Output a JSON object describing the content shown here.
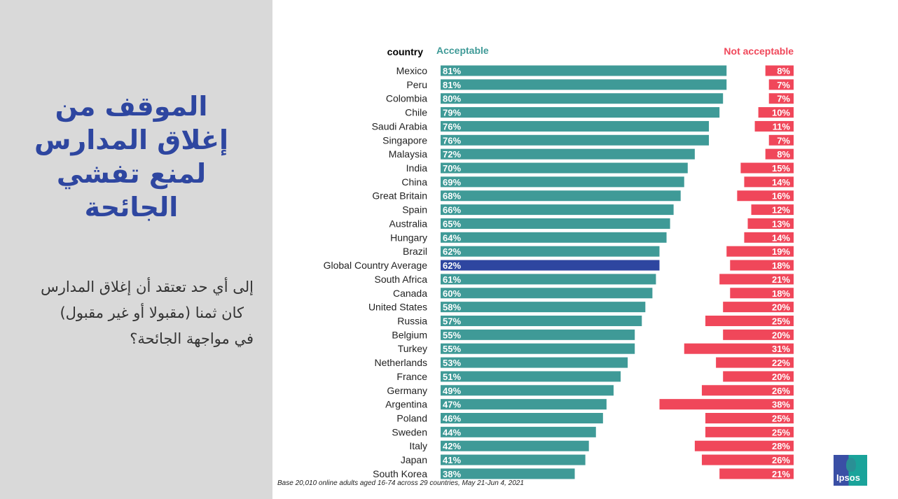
{
  "title_lines": [
    "الموقف من",
    "إغلاق المدارس",
    "لمنع تفشي الجائحة"
  ],
  "question_lines": [
    "إلى أي حد تعتقد أن إغلاق المدارس",
    "كان ثمنا (مقبولا أو غير مقبول)",
    "في مواجهة الجائحة؟"
  ],
  "footnote": "Base 20,010 online adults aged 16-74 across 29 countries,  May 21-Jun 4, 2021",
  "logo_text": "Ipsos",
  "colors": {
    "acceptable": "#3f9a97",
    "average": "#2e46a0",
    "not_acceptable": "#f0475a",
    "acceptable_header": "#3f9a97",
    "not_acceptable_header": "#f0475a"
  },
  "chart_data": {
    "type": "bar",
    "header_country": "country",
    "categories": [
      "Mexico",
      "Peru",
      "Colombia",
      "Chile",
      "Saudi Arabia",
      "Singapore",
      "Malaysia",
      "India",
      "China",
      "Great Britain",
      "Spain",
      "Australia",
      "Hungary",
      "Brazil",
      "Global Country Average",
      "South Africa",
      "Canada",
      "United States",
      "Russia",
      "Belgium",
      "Turkey",
      "Netherlands",
      "France",
      "Germany",
      "Argentina",
      "Poland",
      "Sweden",
      "Italy",
      "Japan",
      "South Korea"
    ],
    "highlight": "Global Country Average",
    "series": [
      {
        "name": "Acceptable",
        "values": [
          81,
          81,
          80,
          79,
          76,
          76,
          72,
          70,
          69,
          68,
          66,
          65,
          64,
          62,
          62,
          61,
          60,
          58,
          57,
          55,
          55,
          53,
          51,
          49,
          47,
          46,
          44,
          42,
          41,
          38
        ]
      },
      {
        "name": "Not acceptable",
        "values": [
          8,
          7,
          7,
          10,
          11,
          7,
          8,
          15,
          14,
          16,
          12,
          13,
          14,
          19,
          18,
          21,
          18,
          20,
          25,
          20,
          31,
          22,
          20,
          26,
          38,
          25,
          25,
          28,
          26,
          21
        ]
      }
    ],
    "unit": "%"
  }
}
